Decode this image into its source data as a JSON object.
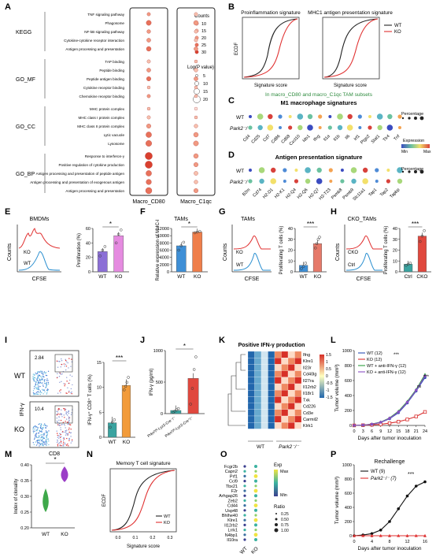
{
  "panels": {
    "A": "A",
    "B": "B",
    "C": "C",
    "D": "D",
    "E": "E",
    "F": "F",
    "G": "G",
    "H": "H",
    "I": "I",
    "J": "J",
    "K": "K",
    "L": "L",
    "M": "M",
    "N": "N",
    "O": "O",
    "P": "P"
  },
  "panelA": {
    "groups": [
      {
        "name": "KEGG",
        "terms": [
          "TNF signaling pathway",
          "Phagosome",
          "NF-kB signaling pathway",
          "Cytokine-cytokine receptor interaction",
          "Antigen processing and presentation"
        ]
      },
      {
        "name": "GO_MF",
        "terms": [
          "TAP binding",
          "Peptide binding",
          "Peptide antigen binding",
          "Cytokine receptor binding",
          "Chemokine receptor binding"
        ]
      },
      {
        "name": "GO_CC",
        "terms": [
          "MHC protein complex",
          "MHC class I protein complex",
          "MHC class II protein complex",
          "Lytic vacuole",
          "Lysosome"
        ]
      },
      {
        "name": "GO_BP",
        "terms": [
          "Response to interferon-γ",
          "Positive regulation of cytokine production",
          "Antigen processing and presentation of peptide antigen",
          "Antigen processing and presentation of exogenous antigen",
          "Antigen processing and presentation"
        ]
      }
    ],
    "columns": [
      "Macro_CD80",
      "Macro_C1qc"
    ],
    "counts_title": "Counts",
    "counts_levels": [
      "10",
      "15",
      "20",
      "25",
      "30"
    ],
    "pval_title": "Log(P value)",
    "pval_levels": [
      "5",
      "10",
      "15",
      "20"
    ]
  },
  "panelB": {
    "titles": [
      "Proinflammation signature",
      "MHC1 antigen presentation signature"
    ],
    "ylabel": "ECDF",
    "xlabel": "Signature score",
    "legend": [
      "WT",
      "KO"
    ],
    "caption": "In macro_CD80 and macro_C1qc TAM subsets"
  },
  "panelC": {
    "title": "M1 macrophage  signatures",
    "rows": [
      "WT",
      "Park2⁻/⁻"
    ],
    "genes": [
      "Cd4",
      "Cd25",
      "Cd7",
      "Cd86",
      "Cd68",
      "Cxcl10",
      "Ido1",
      "Ifng",
      "Il1a",
      "Il1b",
      "Il6",
      "Irf1",
      "Ptgs2",
      "Stat1",
      "Tlr4",
      "Tnf"
    ],
    "legend_title": "Percentage",
    "expr_title": "Expression",
    "expr_min": "Min",
    "expr_max": "Max"
  },
  "panelD": {
    "title": "Antigen presentation signature",
    "rows": [
      "WT",
      "Park2⁻/⁻"
    ],
    "genes": [
      "B2m",
      "Cd74",
      "H2-D1",
      "H2-K1",
      "H2-Q4",
      "H2-Q6",
      "H2-Q7",
      "H2-T23",
      "Psmb8",
      "Psmb9",
      "Slc11a1",
      "Tap1",
      "Tap2",
      "Tapbp"
    ],
    "legend_title": "Percentage"
  },
  "panelE": {
    "title": "BMDMs",
    "hist_labels": [
      "KO",
      "WT"
    ],
    "xlabel": "CFSE",
    "ylabel": "Counts",
    "bar_ylabel": "Proliferation (%)",
    "yticks": [
      "0",
      "20",
      "40",
      "60"
    ],
    "categories": [
      "WT",
      "KO"
    ],
    "sig": "*"
  },
  "panelF": {
    "title": "TAMs",
    "ylabel": "Relative expression of MHC-I",
    "yticks": [
      "0",
      "2000",
      "4000",
      "6000",
      "8000",
      "10000",
      "12000"
    ],
    "categories": [
      "WT",
      "KO"
    ],
    "sig": "*"
  },
  "panelG": {
    "title": "TAMs",
    "hist_labels": [
      "KO",
      "WT"
    ],
    "xlabel": "CFSE",
    "ylabel": "Counts",
    "bar_ylabel": "Proliferating T cells (%)",
    "yticks": [
      "0",
      "10",
      "20",
      "30",
      "40"
    ],
    "categories": [
      "WT",
      "KO"
    ],
    "sig": "***"
  },
  "panelH": {
    "title": "CKO_TAMs",
    "hist_labels": [
      "CKO",
      "Ctrl"
    ],
    "xlabel": "CFSE",
    "ylabel": "Counts",
    "bar_ylabel": "Proliferating T cells (%)",
    "yticks": [
      "0",
      "10",
      "20",
      "30",
      "40"
    ],
    "categories": [
      "Ctrl",
      "CKO"
    ],
    "sig": "***"
  },
  "panelI": {
    "rows": [
      "WT",
      "KO"
    ],
    "gates": [
      "2.84",
      "10.4"
    ],
    "xlabel": "CD8",
    "ylabel": "IFN-γ",
    "bar_ylabel": "IFN-γ⁺ CD8⁺ T cells (%)",
    "yticks": [
      "0",
      "5",
      "10",
      "15"
    ],
    "categories": [
      "WT",
      "KO"
    ],
    "sig": "***"
  },
  "panelJ": {
    "ylabel": "IFN-γ (pg/ml)",
    "yticks": [
      "0",
      "500",
      "1000"
    ],
    "categories": [
      "Prknᶠˡ/ᶠˡ-Lyz2-Cre⁻/⁻",
      "Prknᶠˡ/ᶠˡ-Lyz2-Cre⁺/⁻"
    ],
    "sig": "*"
  },
  "panelK": {
    "title": "Positive IFN-γ production",
    "genes": [
      "Ifng",
      "Klre1",
      "Il23r",
      "Cd40lg",
      "Il27ra",
      "Il12rb2",
      "Il18r1",
      "Txk",
      "Cd226",
      "Cd3e",
      "Carmil2",
      "Klrk1"
    ],
    "groups": [
      "WT",
      "Park2⁻/⁻"
    ],
    "scale": [
      "1.5",
      "1",
      "0.5",
      "0",
      "-0.5",
      "-1",
      "-1.5"
    ]
  },
  "panelL": {
    "ylabel": "Tumor volume (mm³)",
    "xlabel": "Days after tumor inoculation",
    "yticks": [
      "0",
      "200",
      "400",
      "600",
      "800",
      "1000"
    ],
    "xticks": [
      "0",
      "3",
      "6",
      "9",
      "12",
      "15",
      "18",
      "21",
      "24"
    ],
    "legend": [
      "WT (12)",
      "KO (12)",
      "WT + anti-IFN-γ (12)",
      "KO + anti-IFN-γ (12)"
    ],
    "sig": [
      "***",
      "***",
      "ns"
    ],
    "colors": [
      "#2b4fb5",
      "#d93030",
      "#2e9e3e",
      "#8a4fc2"
    ],
    "chart_data": {
      "type": "line",
      "x": [
        0,
        3,
        6,
        9,
        12,
        15,
        18,
        21,
        24
      ],
      "series": [
        {
          "name": "WT (12)",
          "values": [
            0,
            5,
            15,
            40,
            90,
            170,
            300,
            460,
            640
          ]
        },
        {
          "name": "KO (12)",
          "values": [
            0,
            3,
            8,
            15,
            30,
            50,
            80,
            120,
            180
          ]
        },
        {
          "name": "WT + anti-IFN-γ (12)",
          "values": [
            0,
            5,
            18,
            45,
            100,
            190,
            320,
            480,
            680
          ]
        },
        {
          "name": "KO + anti-IFN-γ (12)",
          "values": [
            0,
            5,
            16,
            42,
            95,
            180,
            310,
            470,
            660
          ]
        }
      ]
    }
  },
  "panelM": {
    "ylabel": "Index of clonality",
    "yticks": [
      "0.20",
      "0.25",
      "0.30",
      "0.35",
      "0.40"
    ],
    "categories": [
      "WT",
      "KO"
    ],
    "sig": "*"
  },
  "panelN": {
    "title": "Memory T cell signature",
    "ylabel": "ECDF",
    "xlabel": "Signature score",
    "legend": [
      "WT",
      "KO"
    ],
    "xticks": [
      "0.0",
      "0.1",
      "0.2",
      "0.3"
    ]
  },
  "panelO": {
    "genes": [
      "Fcgr2b",
      "Capn2",
      "Prf1",
      "Ccl9",
      "Tbx21",
      "F2r",
      "Arhgap26",
      "Zeb2",
      "Cd44",
      "Usp48",
      "Bhlhe40",
      "Klre1",
      "Il12rb2",
      "Lrrk1",
      "N4bp1",
      "Il10ra"
    ],
    "columns": [
      "WT",
      "KO"
    ],
    "exp_title": "Exp",
    "exp_max": "Max",
    "exp_min": "Min",
    "ratio_title": "Ratio",
    "ratio_levels": [
      "0.25",
      "0.50",
      "0.75",
      "1.00"
    ]
  },
  "panelP": {
    "title": "Rechallenge",
    "ylabel": "Tumor volume (mm³)",
    "xlabel": "Days after tumor inoculation",
    "yticks": [
      "0",
      "200",
      "400",
      "600",
      "800",
      "1000"
    ],
    "xticks": [
      "0",
      "4",
      "8",
      "12",
      "16"
    ],
    "legend": [
      "WT (9)",
      "Park2⁻/⁻ (7)"
    ],
    "sig": "***",
    "chart_data": {
      "type": "line",
      "x": [
        0,
        2,
        4,
        6,
        8,
        10,
        12,
        14,
        16
      ],
      "series": [
        {
          "name": "WT (9)",
          "values": [
            0,
            10,
            30,
            80,
            200,
            380,
            560,
            700,
            760
          ]
        },
        {
          "name": "Park2⁻/⁻ (7)",
          "values": [
            0,
            0,
            0,
            0,
            0,
            0,
            0,
            0,
            0
          ]
        }
      ]
    }
  }
}
